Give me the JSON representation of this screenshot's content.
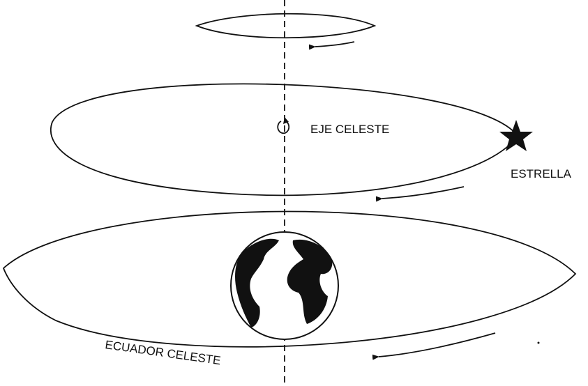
{
  "labels": {
    "axis": "EJE CELESTE",
    "star": "ESTRELLA",
    "equator": "ECUADOR CELESTE"
  }
}
